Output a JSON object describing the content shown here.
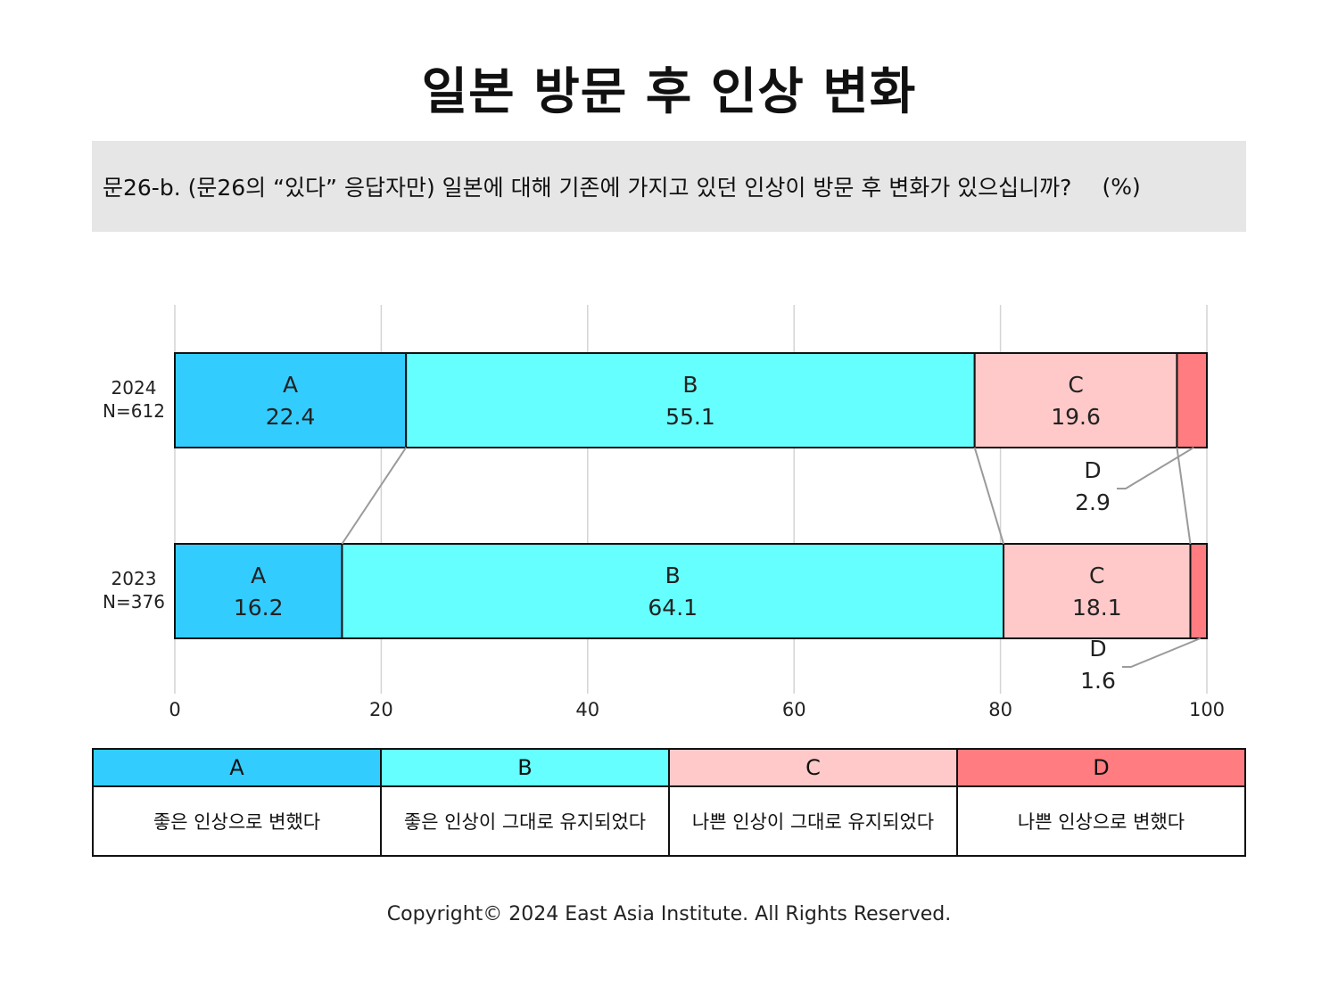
{
  "title": "일본 방문 후 인상 변화",
  "question": {
    "text": "문26-b. (문26의 “있다” 응답자만) 일본에 대해 기존에 가지고 있던 인상이 방문 후 변화가 있으십니까?",
    "unit": "(%)"
  },
  "chart_data": {
    "type": "bar",
    "orientation": "horizontal",
    "stacked": true,
    "title": "",
    "xlabel": "",
    "ylabel": "",
    "xlim": [
      0,
      100
    ],
    "x_ticks": [
      "0",
      "20",
      "40",
      "60",
      "80",
      "100"
    ],
    "grid": true,
    "categories": [
      {
        "label": "2024",
        "sublabel": "N=612"
      },
      {
        "label": "2023",
        "sublabel": "N=376"
      }
    ],
    "series": [
      {
        "name": "A",
        "color": "#33ccff",
        "values": [
          22.4,
          16.2
        ]
      },
      {
        "name": "B",
        "color": "#66ffff",
        "values": [
          55.1,
          64.1
        ]
      },
      {
        "name": "C",
        "color": "#ffc9c9",
        "values": [
          19.6,
          18.1
        ]
      },
      {
        "name": "D",
        "color": "#ff7c80",
        "values": [
          2.9,
          1.6
        ]
      }
    ]
  },
  "legend": {
    "headers": [
      "A",
      "B",
      "C",
      "D"
    ],
    "descriptions": [
      "좋은 인상으로 변했다",
      "좋은 인상이 그대로 유지되었다",
      "나쁜 인상이 그대로 유지되었다",
      "나쁜 인상으로 변했다"
    ],
    "colors": [
      "#33ccff",
      "#66ffff",
      "#ffc9c9",
      "#ff7c80"
    ]
  },
  "footer": "Copyright© 2024 East Asia Institute. All Rights Reserved."
}
